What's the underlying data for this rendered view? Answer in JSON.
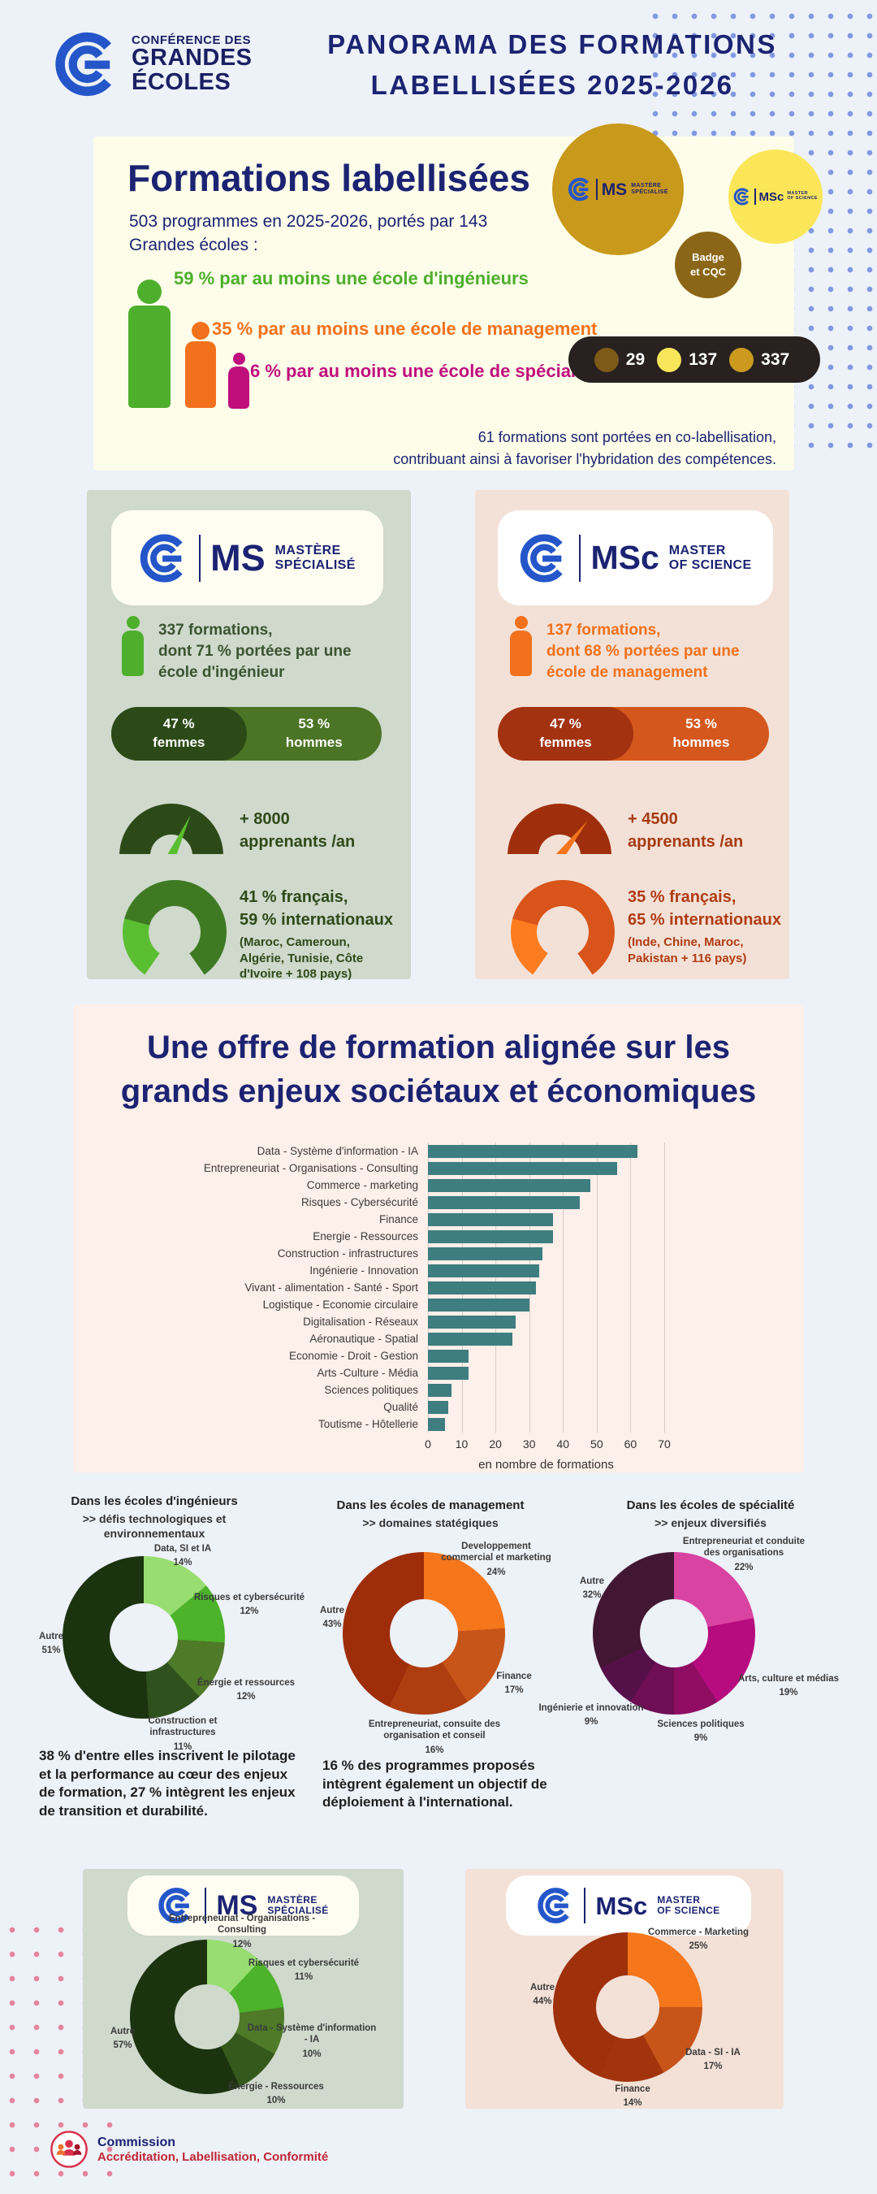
{
  "header": {
    "logo": {
      "line1": "CONFÉRENCE DES",
      "line2": "GRANDES",
      "line3": "ÉCOLES"
    },
    "title_line1": "PANORAMA DES FORMATIONS",
    "title_line2": "LABELLISÉES 2025-2026"
  },
  "intro": {
    "title": "Formations labellisées",
    "subtitle": [
      "503 programmes en 2025-2026, portés par 143",
      "Grandes écoles :"
    ],
    "bullets": [
      {
        "text": "59 % par au moins une école d'ingénieurs",
        "color": "#4daf2b"
      },
      {
        "text": "35 % par au moins une école de management",
        "color": "#f2711c"
      },
      {
        "text": "6 % par au moins une école de spécialité",
        "color": "#c00f7d"
      }
    ],
    "badge": [
      "Badge",
      "et CQC"
    ],
    "legend": [
      {
        "value": "29",
        "color": "#7d5a17"
      },
      {
        "value": "137",
        "color": "#f9e559"
      },
      {
        "value": "337",
        "color": "#cb9a1f"
      }
    ],
    "note": [
      "61 formations sont portées en co-labellisation,",
      "contribuant ainsi à favoriser l'hybridation des compétences."
    ]
  },
  "ms": {
    "abbr": "MS",
    "name1": "MASTÈRE",
    "name2": "SPÉCIALISÉ",
    "stats": [
      "337 formations,",
      "dont 71 % portées par une",
      "école d'ingénieur"
    ],
    "femmes_pct": "47 %",
    "femmes": "femmes",
    "hommes_pct": "53 %",
    "hommes": "hommes",
    "gauge": [
      "+ 8000",
      "apprenants /an"
    ],
    "intl": [
      "41 % français,",
      "59 % internationaux"
    ],
    "intl_small": [
      "(Maroc, Cameroun,",
      "Algérie, Tunisie, Côte",
      "d'Ivoire + 108 pays)"
    ]
  },
  "msc": {
    "abbr": "MSc",
    "name1": "MASTER",
    "name2": "OF SCIENCE",
    "stats": [
      "137 formations,",
      "dont 68 % portées par une",
      "école de management"
    ],
    "femmes_pct": "47 %",
    "femmes": "femmes",
    "hommes_pct": "53 %",
    "hommes": "hommes",
    "gauge": [
      "+ 4500",
      "apprenants /an"
    ],
    "intl": [
      "35 % français,",
      "65 % internationaux"
    ],
    "intl_small": [
      "(Inde, Chine, Maroc,",
      "Pakistan + 116 pays)"
    ]
  },
  "offer": {
    "title": [
      "Une offre de formation alignée sur les",
      "grands enjeux sociétaux et économiques"
    ]
  },
  "chart_data": [
    {
      "id": "bar-main",
      "type": "bar",
      "title": "Une offre de formation alignée sur les grands enjeux sociétaux et économiques",
      "categories": [
        "Data - Système d'information - IA",
        "Entrepreneuriat - Organisations - Consulting",
        "Commerce - marketing",
        "Risques - Cybersécurité",
        "Finance",
        "Energie - Ressources",
        "Construction - infrastructures",
        "Ingénierie - Innovation",
        "Vivant - alimentation - Santé - Sport",
        "Logistique - Economie circulaire",
        "Digitalisation - Réseaux",
        "Aéronautique - Spatial",
        "Economie - Droit - Gestion",
        "Arts -Culture - Média",
        "Sciences politiques",
        "Qualité",
        "Toutisme - Hôtellerie"
      ],
      "values": [
        62,
        56,
        48,
        45,
        37,
        37,
        34,
        33,
        32,
        30,
        26,
        25,
        12,
        12,
        7,
        6,
        5
      ],
      "xlabel": "en nombre de formations",
      "xlim": [
        0,
        70
      ],
      "ticks": [
        0,
        10,
        20,
        30,
        40,
        50,
        60,
        70
      ],
      "bar_color": "#3e7d80",
      "grid": true,
      "legend_position": "none"
    },
    {
      "id": "donut-ing",
      "type": "pie",
      "title": "Dans les écoles d'ingénieurs",
      "subtitle": ">> défis technologiques et environnementaux",
      "caption": "38 % d'entre elles inscrivent le pilotage et la performance au cœur des enjeux de formation, 27 % intègrent les enjeux de transition et durabilité.",
      "segments": [
        {
          "label": "Data, SI et IA",
          "pct": 14,
          "color": "#97dd70"
        },
        {
          "label": "Risques et cybersécurité",
          "pct": 12,
          "color": "#4cb32b"
        },
        {
          "label": "Énergie et ressources",
          "pct": 12,
          "color": "#4f7a28"
        },
        {
          "label": "Construction et infrastructures",
          "pct": 11,
          "color": "#2f511d"
        },
        {
          "label": "Autre",
          "pct": 51,
          "color": "#1c330f"
        }
      ]
    },
    {
      "id": "donut-mgmt",
      "type": "pie",
      "title": "Dans les écoles de management",
      "subtitle": ">> domaines statégiques",
      "caption": "16 % des programmes proposés intègrent également un objectif de déploiement à l'international.",
      "segments": [
        {
          "label": "Developpement commercial et marketing",
          "pct": 24,
          "color": "#f5761b"
        },
        {
          "label": "Finance",
          "pct": 17,
          "color": "#c75418"
        },
        {
          "label": "Entrepreneuriat, consuite des organisation et conseil",
          "pct": 16,
          "color": "#ae3d10"
        },
        {
          "label": "Autre",
          "pct": 43,
          "color": "#9e2d0a"
        }
      ]
    },
    {
      "id": "donut-spec",
      "type": "pie",
      "title": "Dans les écoles de spécialité",
      "subtitle": ">> enjeux diversifiés",
      "segments": [
        {
          "label": "Entrepreneuriat et conduite des organisations",
          "pct": 22,
          "color": "#d943a1"
        },
        {
          "label": "Arts, culture et médias",
          "pct": 19,
          "color": "#b70c7f"
        },
        {
          "label": "Sciences politiques",
          "pct": 9,
          "color": "#8f0e63"
        },
        {
          "label": "",
          "pct": 9,
          "color": "#6f0d55"
        },
        {
          "label": "Ingénierie et innovation",
          "pct": 9,
          "color": "#55104a"
        },
        {
          "label": "Autre",
          "pct": 32,
          "color": "#421733"
        }
      ]
    },
    {
      "id": "donut-ms",
      "type": "pie",
      "segments": [
        {
          "label": "Entrepreneuriat - Organisations - Consulting",
          "pct": 12,
          "color": "#97dd70"
        },
        {
          "label": "Risques et cybersécurité",
          "pct": 11,
          "color": "#4cb32b"
        },
        {
          "label": "Data - Système d'information - IA",
          "pct": 10,
          "color": "#4f7a28"
        },
        {
          "label": "Énergie - Ressources",
          "pct": 10,
          "color": "#35591c"
        },
        {
          "label": "Autre",
          "pct": 57,
          "color": "#1c330f"
        }
      ]
    },
    {
      "id": "donut-msc",
      "type": "pie",
      "segments": [
        {
          "label": "Commerce - Marketing",
          "pct": 25,
          "color": "#f5761b"
        },
        {
          "label": "Data - SI - IA",
          "pct": 17,
          "color": "#c75418"
        },
        {
          "label": "Finance",
          "pct": 14,
          "color": "#a2340d"
        },
        {
          "label": "Autre",
          "pct": 44,
          "color": "#9e300c"
        }
      ]
    }
  ],
  "footer": {
    "line1": "Commission",
    "line2": "Accréditation, Labellisation, Conformité"
  }
}
